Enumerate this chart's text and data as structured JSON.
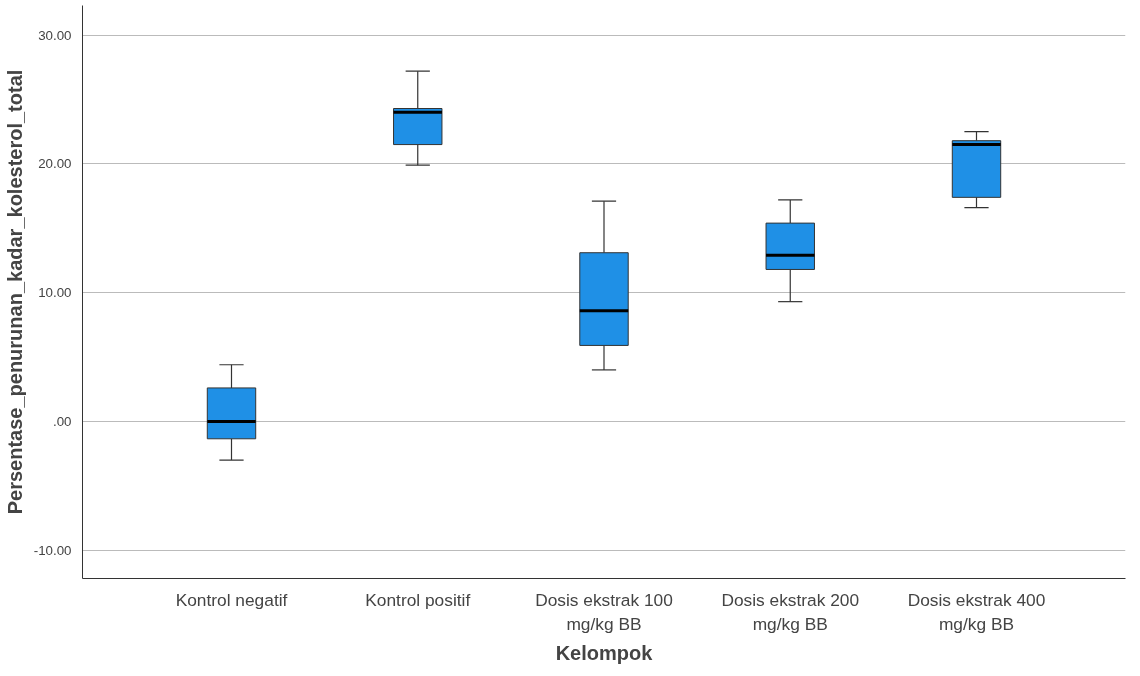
{
  "chart_data": {
    "type": "box",
    "xlabel": "Kelompok",
    "ylabel": "Persentase_penurunan_kadar_kolesterol_total",
    "categories": [
      "Kontrol negatif",
      "Kontrol positif",
      "Dosis ekstrak 100 mg/kg BB",
      "Dosis ekstrak 200 mg/kg BB",
      "Dosis ekstrak 400 mg/kg BB"
    ],
    "boxes": [
      {
        "low": -3.0,
        "q1": -1.35,
        "median": 0.0,
        "q3": 2.6,
        "high": 4.4
      },
      {
        "low": 19.9,
        "q1": 21.5,
        "median": 24.0,
        "q3": 24.3,
        "high": 27.2
      },
      {
        "low": 4.0,
        "q1": 5.9,
        "median": 8.6,
        "q3": 13.1,
        "high": 17.1
      },
      {
        "low": 9.3,
        "q1": 11.8,
        "median": 12.9,
        "q3": 15.4,
        "high": 17.2
      },
      {
        "low": 16.6,
        "q1": 17.4,
        "median": 21.5,
        "q3": 21.8,
        "high": 22.5
      }
    ],
    "color": "#1f90e6",
    "ylim": [
      -12.2,
      32.3
    ],
    "yticks": [
      {
        "value": -10,
        "label": "-10.00"
      },
      {
        "value": 0,
        "label": ".00"
      },
      {
        "value": 10,
        "label": "10.00"
      },
      {
        "value": 20,
        "label": "20.00"
      },
      {
        "value": 30,
        "label": "30.00"
      }
    ],
    "grid": "y"
  }
}
